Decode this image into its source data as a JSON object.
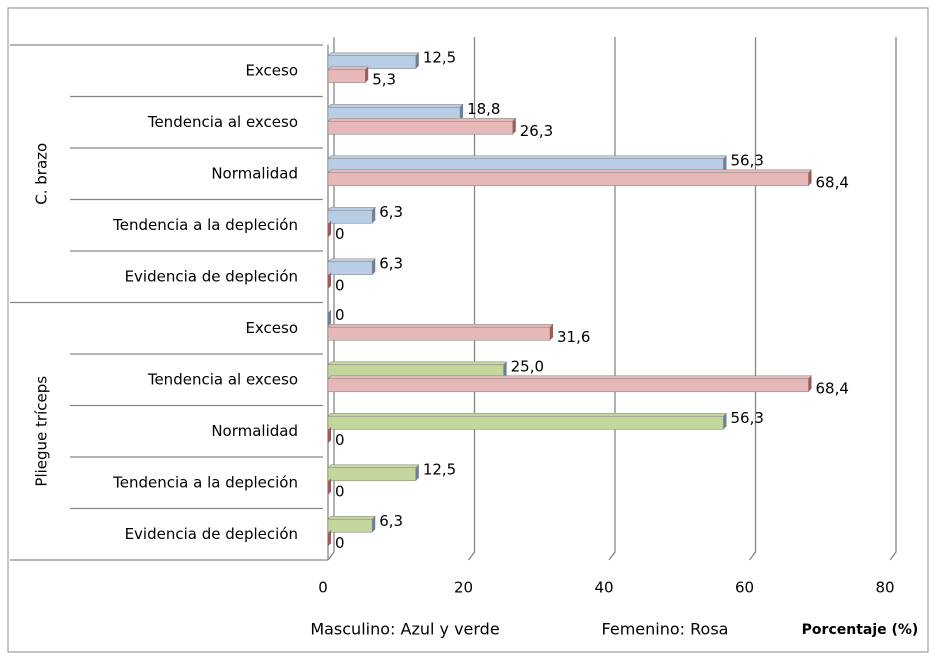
{
  "chart_data": {
    "type": "bar",
    "orientation": "horizontal",
    "x_label": "Porcentaje (%)",
    "groups": [
      "C. brazo",
      "Pliegue tríceps"
    ],
    "categories": [
      "Exceso",
      "Tendencia al exceso",
      "Normalidad",
      "Tendencia a la depleción",
      "Evidencia de depleción",
      "Exceso",
      "Tendencia al exceso",
      "Normalidad",
      "Tendencia a la depleción",
      "Evidencia de depleción"
    ],
    "series": [
      {
        "name": "Masculino: Azul y verde",
        "colors": [
          "#b9cde5",
          "#b9cde5",
          "#b9cde5",
          "#b9cde5",
          "#b9cde5",
          "#c3d69b",
          "#c3d69b",
          "#c3d69b",
          "#c3d69b",
          "#c3d69b"
        ],
        "values": [
          12.5,
          18.8,
          56.3,
          6.3,
          6.3,
          0,
          25.0,
          56.3,
          12.5,
          6.3
        ],
        "value_labels": [
          "12,5",
          "18,8",
          "56,3",
          "6,3",
          "6,3",
          "0",
          "25,0",
          "56,3",
          "12,5",
          "6,3"
        ]
      },
      {
        "name": "Femenino: Rosa",
        "color": "#e6b9b8",
        "values": [
          5.3,
          26.3,
          68.4,
          0,
          0,
          31.6,
          68.4,
          0,
          0,
          0
        ],
        "value_labels": [
          "5,3",
          "26,3",
          "68,4",
          "0",
          "0",
          "31,6",
          "68,4",
          "0",
          "0",
          "0"
        ]
      }
    ],
    "xlim": [
      0,
      80
    ],
    "xticks": [
      0,
      20,
      40,
      60,
      80
    ],
    "grid": true
  }
}
